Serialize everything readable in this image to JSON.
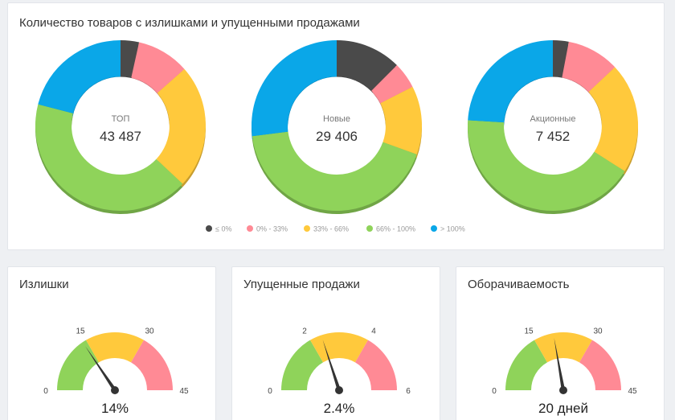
{
  "top_panel": {
    "title": "Количество товаров с излишками и упущенными продажами"
  },
  "colors": {
    "dark": "#4a4a4a",
    "pink": "#ff8a95",
    "yellow": "#ffc93c",
    "green": "#8fd35a",
    "blue": "#0aa7e8"
  },
  "chart_data": [
    {
      "type": "pie",
      "label": "ТОП",
      "total": "43 487",
      "legend": [
        "≤ 0%",
        "0% - 33%",
        "33% - 66%",
        "66% - 100%",
        "> 100%"
      ],
      "values": [
        3.5,
        10,
        23.5,
        42,
        21
      ]
    },
    {
      "type": "pie",
      "label": "Новые",
      "total": "29 406",
      "legend": [
        "≤ 0%",
        "0% - 33%",
        "33% - 66%",
        "66% - 100%",
        "> 100%"
      ],
      "values": [
        12.5,
        5,
        13,
        42.5,
        27
      ]
    },
    {
      "type": "pie",
      "label": "Акционные",
      "total": "7 452",
      "legend": [
        "≤ 0%",
        "0% - 33%",
        "33% - 66%",
        "66% - 100%",
        "> 100%"
      ],
      "values": [
        3,
        10,
        21,
        42,
        24
      ]
    }
  ],
  "legend": [
    "≤ 0%",
    "0% - 33%",
    "33% - 66%",
    "66% - 100%",
    "> 100%"
  ],
  "gauges": [
    {
      "title": "Излишки",
      "min": 0,
      "max": 45,
      "ticks": [
        "0",
        "15",
        "30",
        "45"
      ],
      "value": 14,
      "value_text": "14%"
    },
    {
      "title": "Упущенные продажи",
      "min": 0,
      "max": 6,
      "ticks": [
        "0",
        "2",
        "4",
        "6"
      ],
      "value": 2.4,
      "value_text": "2.4%"
    },
    {
      "title": "Оборачиваемость",
      "min": 0,
      "max": 45,
      "ticks": [
        "0",
        "15",
        "30",
        "45"
      ],
      "value": 20,
      "value_text": "20 дней"
    }
  ]
}
